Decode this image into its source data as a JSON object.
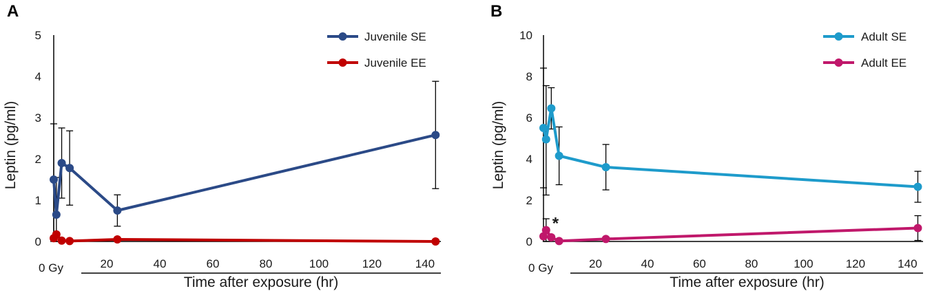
{
  "chart_data": [
    {
      "panel": "A",
      "type": "line",
      "xlabel": "Time after exposure (hr)",
      "ylabel": "Leptin (pg/ml)",
      "x_zero_label": "0 Gy",
      "x_ticks": [
        20,
        40,
        60,
        80,
        100,
        120,
        140
      ],
      "y_ticks": [
        0,
        1,
        2,
        3,
        4,
        5
      ],
      "xlim": [
        0,
        146
      ],
      "ylim": [
        0,
        5
      ],
      "series": [
        {
          "name": "Juvenile SE",
          "color": "#2b4a87",
          "x": [
            0,
            1,
            3,
            6,
            24,
            144
          ],
          "y": [
            1.5,
            0.65,
            1.9,
            1.78,
            0.75,
            2.58
          ],
          "err_lo": [
            1.5,
            0.65,
            0.85,
            0.9,
            0.38,
            1.3
          ],
          "err_hi": [
            1.35,
            0.9,
            0.85,
            0.9,
            0.38,
            1.3
          ]
        },
        {
          "name": "Juvenile EE",
          "color": "#c00000",
          "x": [
            0,
            1,
            3,
            6,
            24,
            144
          ],
          "y": [
            0.08,
            0.17,
            0.02,
            0.01,
            0.05,
            0.0
          ],
          "err_lo": [
            0.05,
            0.05,
            0.02,
            0.01,
            0.02,
            0.0
          ],
          "err_hi": [
            0.05,
            0.05,
            0.02,
            0.01,
            0.02,
            0.0
          ]
        }
      ]
    },
    {
      "panel": "B",
      "type": "line",
      "xlabel": "Time after exposure (hr)",
      "ylabel": "Leptin (pg/ml)",
      "x_zero_label": "0 Gy",
      "x_ticks": [
        20,
        40,
        60,
        80,
        100,
        120,
        140
      ],
      "y_ticks": [
        0,
        2,
        4,
        6,
        8,
        10
      ],
      "xlim": [
        0,
        146
      ],
      "ylim": [
        0,
        10
      ],
      "annotation": "*",
      "series": [
        {
          "name": "Adult SE",
          "color": "#1e9bcb",
          "x": [
            0,
            1,
            3,
            6,
            24,
            144
          ],
          "y": [
            5.5,
            4.95,
            6.45,
            4.15,
            3.6,
            2.65
          ],
          "err_lo": [
            2.9,
            2.7,
            1.0,
            1.4,
            1.1,
            0.75
          ],
          "err_hi": [
            2.9,
            2.6,
            1.0,
            1.4,
            1.1,
            0.75
          ]
        },
        {
          "name": "Adult EE",
          "color": "#c0186b",
          "x": [
            0,
            1,
            3,
            6,
            24,
            144
          ],
          "y": [
            0.25,
            0.55,
            0.2,
            0.02,
            0.12,
            0.65
          ],
          "err_lo": [
            0.1,
            0.55,
            0.1,
            0.02,
            0.05,
            0.6
          ],
          "err_hi": [
            0.1,
            0.55,
            0.1,
            0.02,
            0.05,
            0.6
          ]
        }
      ]
    }
  ]
}
